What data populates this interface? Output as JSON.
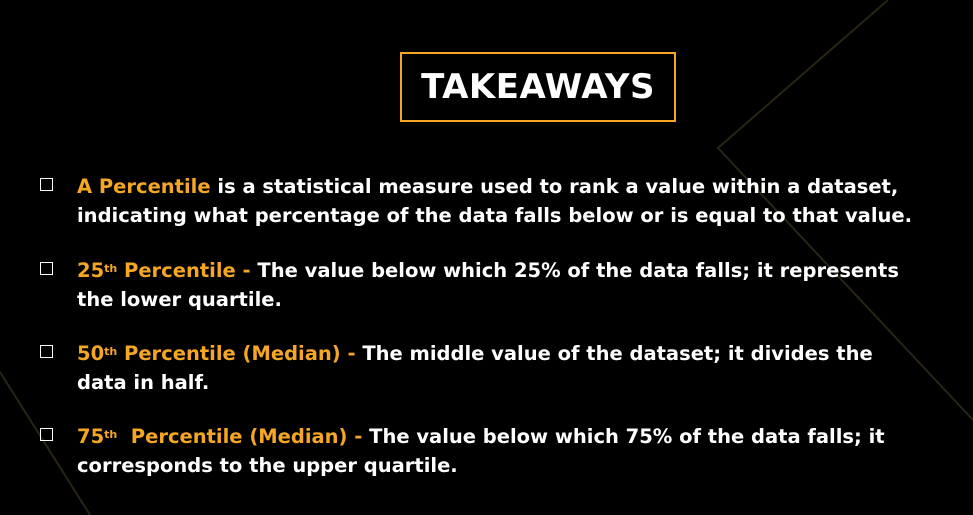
{
  "title": "TAKEAWAYS",
  "colors": {
    "background": "#000000",
    "accent": "#f5a623",
    "text": "#ffffff"
  },
  "items": [
    {
      "icon": "checkbox-icon",
      "highlight": "A Percentile",
      "highlight_sup": "",
      "highlight_rest": "",
      "text": " is a statistical measure used to rank a value within a dataset, indicating what percentage of the data falls below or is equal to that value."
    },
    {
      "icon": "checkbox-icon",
      "highlight": "25",
      "highlight_sup": "th",
      "highlight_rest": " Percentile - ",
      "text": "The value below which 25% of the data falls; it represents the lower quartile."
    },
    {
      "icon": "checkbox-icon",
      "highlight": "50",
      "highlight_sup": "th",
      "highlight_rest": " Percentile (Median) - ",
      "text": "The middle value of the dataset; it divides the data in half."
    },
    {
      "icon": "checkbox-icon",
      "highlight": "75",
      "highlight_sup": "th",
      "highlight_rest": "  Percentile (Median) - ",
      "text": "The value below which 75% of the data falls; it corresponds to the upper quartile."
    }
  ]
}
